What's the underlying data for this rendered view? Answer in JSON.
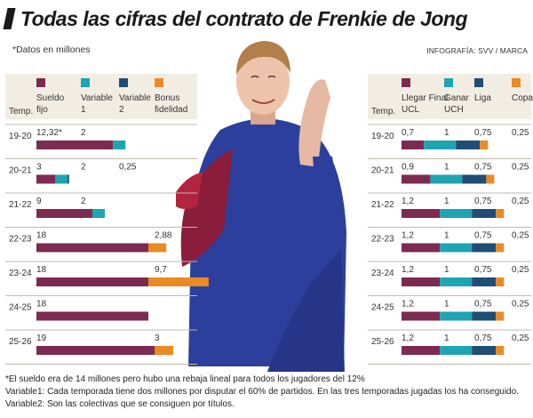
{
  "title": "Todas las cifras del contrato de Frenkie de Jong",
  "subtitle": "*Datos en millones",
  "credit": "INFOGRAFÍA: SVV / MARCA",
  "notes": [
    "*El sueldo era de 14 millones pero hubo una rebaja lineal para todos los jugadores del 12%",
    "Variable1: Cada temporada tiene dos millones por disputar el 60% de partidos. En las tres temporadas jugadas los ha conseguido.",
    "Variable2: Son las colectivas que se consiguen por títulos."
  ],
  "colors": {
    "band": "#f1ede2",
    "rule": "#bfbab0",
    "maroon": "#7d2a52",
    "teal": "#1ea4b2",
    "navy": "#1f4d74",
    "orange": "#ea8a22"
  },
  "chart_data": [
    {
      "type": "bar",
      "stacked": true,
      "orientation": "horizontal",
      "category_label": "Temp.",
      "categories": [
        "19-20",
        "20-21",
        "21-22",
        "22-23",
        "23-24",
        "24-25",
        "25-26"
      ],
      "series": [
        {
          "name": "Sueldo fijo",
          "color": "#7d2a52",
          "values": [
            12.32,
            3,
            9,
            18,
            18,
            18,
            19
          ],
          "labels": [
            "12,32*",
            "3",
            "9",
            "18",
            "18",
            "18",
            "19"
          ]
        },
        {
          "name": "Variable 1",
          "color": "#1ea4b2",
          "values": [
            2,
            2,
            2,
            0,
            0,
            0,
            0
          ],
          "labels": [
            "2",
            "2",
            "2",
            "",
            "",
            "",
            ""
          ]
        },
        {
          "name": "Variable 2",
          "color": "#1f4d74",
          "values": [
            0,
            0.25,
            0,
            0,
            0,
            0,
            0
          ],
          "labels": [
            "",
            "0,25",
            "",
            "",
            "",
            "",
            ""
          ]
        },
        {
          "name": "Bonus fidelidad",
          "color": "#ea8a22",
          "values": [
            0,
            0,
            0,
            2.88,
            9.7,
            0,
            3
          ],
          "labels": [
            "",
            "",
            "",
            "2,88",
            "9,7",
            "",
            "3"
          ]
        }
      ]
    },
    {
      "type": "bar",
      "stacked": true,
      "orientation": "horizontal",
      "category_label": "Temp.",
      "categories": [
        "19-20",
        "20-21",
        "21-22",
        "22-23",
        "23-24",
        "24-25",
        "25-26"
      ],
      "series": [
        {
          "name": "Llegar Final UCL",
          "color": "#7d2a52",
          "values": [
            0.7,
            0.9,
            1.2,
            1.2,
            1.2,
            1.2,
            1.2
          ],
          "labels": [
            "0,7",
            "0,9",
            "1,2",
            "1,2",
            "1,2",
            "1,2",
            "1,2"
          ]
        },
        {
          "name": "Ganar UCH",
          "color": "#1ea4b2",
          "values": [
            1,
            1,
            1,
            1,
            1,
            1,
            1
          ],
          "labels": [
            "1",
            "1",
            "1",
            "1",
            "1",
            "1",
            "1"
          ]
        },
        {
          "name": "Liga",
          "color": "#1f4d74",
          "values": [
            0.75,
            0.75,
            0.75,
            0.75,
            0.75,
            0.75,
            0.75
          ],
          "labels": [
            "0,75",
            "0,75",
            "0,75",
            "0,75",
            "0,75",
            "0,75",
            "0,75"
          ]
        },
        {
          "name": "Copa",
          "color": "#ea8a22",
          "values": [
            0.25,
            0.25,
            0.25,
            0.25,
            0.25,
            0.25,
            0.25
          ],
          "labels": [
            "0,25",
            "0,25",
            "0,25",
            "0,25",
            "0,25",
            "0,25",
            "0,25"
          ]
        }
      ]
    }
  ]
}
